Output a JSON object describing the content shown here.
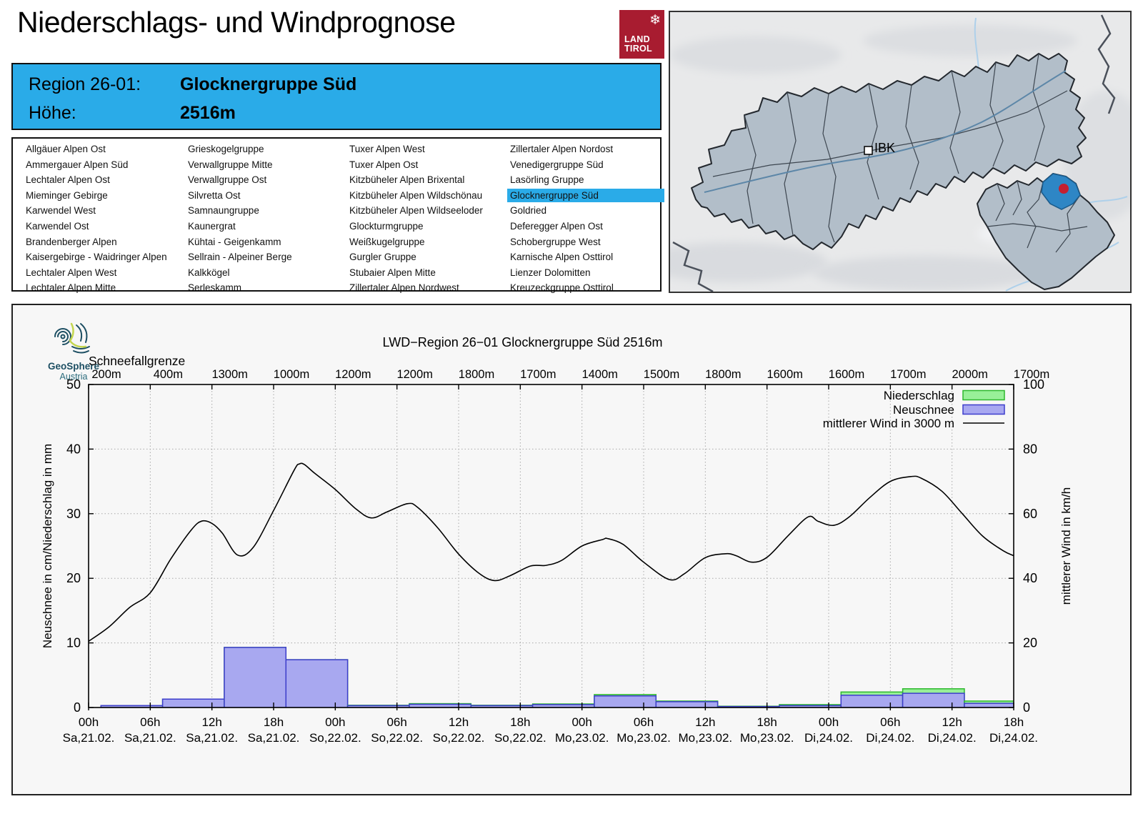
{
  "header": {
    "title": "Niederschlags- und Windprognose",
    "logo": {
      "line1": "LAND",
      "line2": "TIROL",
      "snowflake_icon": "❄"
    }
  },
  "region_info": {
    "region_label": "Region 26-01:",
    "region_name": "Glocknergruppe Süd",
    "altitude_label": "Höhe:",
    "altitude_value": "2516m"
  },
  "region_table": {
    "selected": "Glocknergruppe Süd",
    "columns": [
      [
        "Allgäuer Alpen Ost",
        "Ammergauer Alpen Süd",
        "Lechtaler Alpen Ost",
        "Mieminger Gebirge",
        "Karwendel West",
        "Karwendel Ost",
        "Brandenberger Alpen",
        "Kaisergebirge - Waidringer Alpen",
        "Lechtaler Alpen West",
        "Lechtaler Alpen Mitte"
      ],
      [
        "Grieskogelgruppe",
        "Verwallgruppe Mitte",
        "Verwallgruppe Ost",
        "Silvretta Ost",
        "Samnaungruppe",
        "Kaunergrat",
        "Kühtai - Geigenkamm",
        "Sellrain - Alpeiner Berge",
        "Kalkkögel",
        "Serleskamm"
      ],
      [
        "Tuxer Alpen West",
        "Tuxer Alpen Ost",
        "Kitzbüheler Alpen Brixental",
        "Kitzbüheler Alpen Wildschönau",
        "Kitzbüheler Alpen Wildseeloder",
        "Glockturmgruppe",
        "Weißkugelgruppe",
        "Gurgler Gruppe",
        "Stubaier Alpen Mitte",
        "Zillertaler Alpen Nordwest"
      ],
      [
        "Zillertaler Alpen Nordost",
        "Venedigergruppe Süd",
        "Lasörling Gruppe",
        "Glocknergruppe Süd",
        "Goldried",
        "Deferegger Alpen Ost",
        "Schobergruppe West",
        "Karnische Alpen Osttirol",
        "Lienzer Dolomitten",
        "Kreuzeckgruppe Osttirol"
      ]
    ]
  },
  "map": {
    "city_label": "IBK"
  },
  "colors": {
    "header_blue": "#2aabe8",
    "land_tirol_red": "#a81c30",
    "niederschlag_fill": "#98f098",
    "niederschlag_stroke": "#2eb82e",
    "neuschnee_fill": "#a8a8f0",
    "neuschnee_stroke": "#3d3dcc",
    "wind_line": "#000000",
    "map_region_fill": "#b2bec9",
    "map_highlight_fill": "#2e86c5",
    "map_dot_red": "#c41f30"
  },
  "chart_data": {
    "type": "combo-bar-line",
    "title": "LWD−Region 26−01 Glocknergruppe Süd 2516m",
    "branding": {
      "name": "GeoSphere",
      "sub": "Austria"
    },
    "snowline_header": "Schneefallgrenze",
    "snowline_labels": [
      "200m",
      "400m",
      "1300m",
      "1000m",
      "1200m",
      "1200m",
      "1800m",
      "1700m",
      "1400m",
      "1500m",
      "1800m",
      "1600m",
      "1600m",
      "1700m",
      "2000m",
      "1700m"
    ],
    "x_tick_hours": [
      "00h",
      "06h",
      "12h",
      "18h",
      "00h",
      "06h",
      "12h",
      "18h",
      "00h",
      "06h",
      "12h",
      "18h",
      "00h",
      "06h",
      "12h",
      "18h"
    ],
    "x_tick_dates": [
      "Sa,21.02.",
      "Sa,21.02.",
      "Sa,21.02.",
      "Sa,21.02.",
      "So,22.02.",
      "So,22.02.",
      "So,22.02.",
      "So,22.02.",
      "Mo,23.02.",
      "Mo,23.02.",
      "Mo,23.02.",
      "Mo,23.02.",
      "Di,24.02.",
      "Di,24.02.",
      "Di,24.02.",
      "Di,24.02."
    ],
    "x_range_hours": [
      0,
      90
    ],
    "ylabel_left": "Neuschnee in cm/Niederschlag in mm",
    "ylabel_right": "mittlerer Wind in km/h",
    "ylim_left": [
      0,
      50
    ],
    "yticks_left": [
      0,
      10,
      20,
      30,
      40,
      50
    ],
    "ylim_right": [
      0,
      100
    ],
    "yticks_right": [
      0,
      20,
      40,
      60,
      80,
      100
    ],
    "legend": [
      {
        "label": "Niederschlag",
        "type": "box",
        "fill": "#98f098",
        "stroke": "#2eb82e"
      },
      {
        "label": "Neuschnee",
        "type": "box",
        "fill": "#a8a8f0",
        "stroke": "#3d3dcc"
      },
      {
        "label": "mittlerer Wind in 3000 m",
        "type": "line",
        "stroke": "#000000"
      }
    ],
    "bars": {
      "interval_hours": 6,
      "start_offset_hours": 1.2,
      "niederschlag_mm": [
        0.3,
        1.3,
        9.3,
        7.4,
        0.35,
        0.6,
        0.35,
        0.55,
        2.0,
        1.0,
        0.2,
        0.45,
        2.4,
        2.9,
        1.0
      ],
      "neuschnee_cm": [
        0.3,
        1.3,
        9.3,
        7.4,
        0.3,
        0.5,
        0.3,
        0.45,
        1.8,
        0.9,
        0.15,
        0.3,
        1.9,
        2.2,
        0.65
      ]
    },
    "wind_kmh": {
      "x_hours": [
        0,
        2,
        4,
        6,
        8,
        10,
        11,
        12,
        13,
        14.5,
        16,
        18,
        20,
        20.5,
        21,
        22,
        24,
        26,
        27.5,
        29,
        31,
        32,
        34,
        36,
        38,
        39.5,
        41,
        43,
        44.5,
        46,
        48,
        50,
        50.5,
        52,
        54,
        56.5,
        58,
        60,
        62,
        63,
        64.5,
        66,
        68,
        70,
        71,
        72.5,
        74,
        76,
        78,
        80,
        81,
        83,
        85,
        87,
        89,
        90
      ],
      "values": [
        20.5,
        25,
        31,
        35.5,
        46,
        55,
        57.7,
        57,
        54,
        47.2,
        49.5,
        61,
        73.5,
        75.4,
        75.2,
        72.5,
        67.5,
        61.5,
        58.7,
        60.5,
        63.1,
        62,
        55.5,
        47.5,
        41.5,
        39.3,
        40.8,
        43.8,
        44,
        45.5,
        50,
        52,
        52.3,
        50.5,
        45,
        39.6,
        41.5,
        46.4,
        47.6,
        47,
        45,
        46.5,
        53,
        59,
        57.6,
        56.4,
        59,
        65,
        70,
        71.5,
        71,
        67,
        60,
        53,
        48.5,
        47
      ]
    }
  }
}
